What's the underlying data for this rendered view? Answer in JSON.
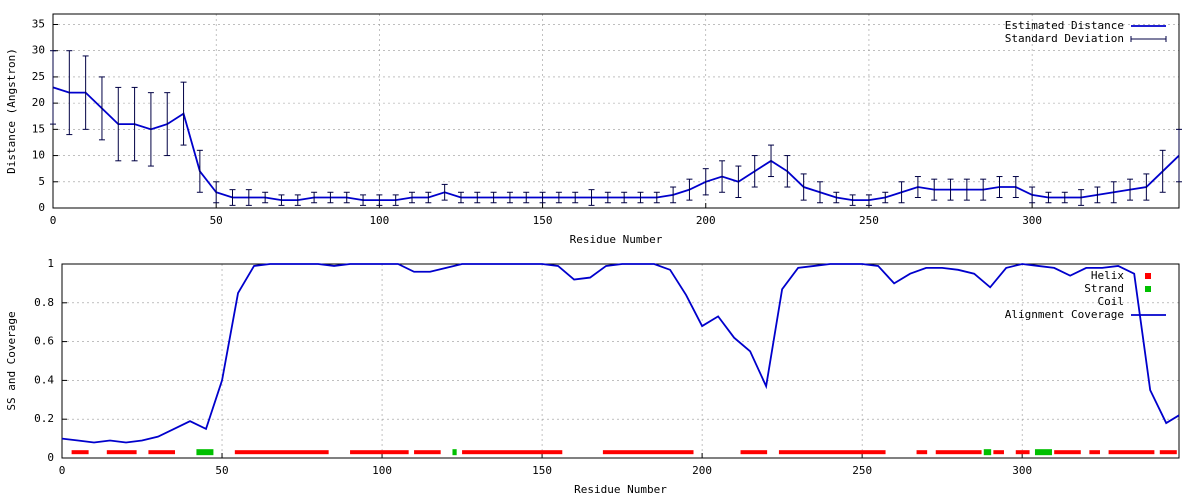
{
  "chart_data": [
    {
      "type": "line",
      "xlabel": "Residue Number",
      "ylabel": "Distance (Angstron)",
      "xlim": [
        0,
        345
      ],
      "xticks": [
        0,
        50,
        100,
        150,
        200,
        250,
        300
      ],
      "ylim": [
        0,
        37
      ],
      "yticks": [
        0,
        5,
        10,
        15,
        20,
        25,
        30,
        35
      ],
      "grid": true,
      "legend": "top-right",
      "x": [
        0,
        5,
        10,
        15,
        20,
        25,
        30,
        35,
        40,
        45,
        50,
        55,
        60,
        65,
        70,
        75,
        80,
        85,
        90,
        95,
        100,
        105,
        110,
        115,
        120,
        125,
        130,
        135,
        140,
        145,
        150,
        155,
        160,
        165,
        170,
        175,
        180,
        185,
        190,
        195,
        200,
        205,
        210,
        215,
        220,
        225,
        230,
        235,
        240,
        245,
        250,
        255,
        260,
        265,
        270,
        275,
        280,
        285,
        290,
        295,
        300,
        305,
        310,
        315,
        320,
        325,
        330,
        335,
        340,
        345
      ],
      "series": [
        {
          "name": "Estimated Distance",
          "color": "#0000cc",
          "values": [
            23,
            22,
            22,
            19,
            16,
            16,
            15,
            16,
            18,
            7,
            3,
            2,
            2,
            2,
            1.5,
            1.5,
            2,
            2,
            2,
            1.5,
            1.5,
            1.5,
            2,
            2,
            3,
            2,
            2,
            2,
            2,
            2,
            2,
            2,
            2,
            2,
            2,
            2,
            2,
            2,
            2.5,
            3.5,
            5,
            6,
            5,
            7,
            9,
            7,
            4,
            3,
            2,
            1.5,
            1.5,
            2,
            3,
            4,
            3.5,
            3.5,
            3.5,
            3.5,
            4,
            4,
            2.5,
            2,
            2,
            2,
            2.5,
            3,
            3.5,
            4,
            7,
            10
          ]
        },
        {
          "name": "Standard Deviation",
          "color": "#000044",
          "errors": [
            7,
            8,
            7,
            6,
            7,
            7,
            7,
            6,
            6,
            4,
            2,
            1.5,
            1.5,
            1,
            1,
            1,
            1,
            1,
            1,
            1,
            1,
            1,
            1,
            1,
            1.5,
            1,
            1,
            1,
            1,
            1,
            1,
            1,
            1,
            1.5,
            1,
            1,
            1,
            1,
            1.5,
            2,
            2.5,
            3,
            3,
            3,
            3,
            3,
            2.5,
            2,
            1,
            1,
            1,
            1,
            2,
            2,
            2,
            2,
            2,
            2,
            2,
            2,
            1.5,
            1,
            1,
            1.5,
            1.5,
            2,
            2,
            2.5,
            4,
            5
          ]
        }
      ]
    },
    {
      "type": "line",
      "xlabel": "Residue Number",
      "ylabel": "SS and Coverage",
      "xlim": [
        0,
        349
      ],
      "xticks": [
        0,
        50,
        100,
        150,
        200,
        250,
        300
      ],
      "ylim": [
        0,
        1
      ],
      "yticks": [
        0,
        0.2,
        0.4,
        0.6,
        0.8,
        1
      ],
      "grid": true,
      "legend": "top-right",
      "x": [
        0,
        5,
        10,
        15,
        20,
        25,
        30,
        35,
        40,
        45,
        50,
        55,
        60,
        65,
        70,
        75,
        80,
        85,
        90,
        95,
        100,
        105,
        110,
        115,
        120,
        125,
        130,
        135,
        140,
        145,
        150,
        155,
        160,
        165,
        170,
        175,
        180,
        185,
        190,
        195,
        200,
        205,
        210,
        215,
        220,
        225,
        230,
        235,
        240,
        245,
        250,
        255,
        260,
        265,
        270,
        275,
        280,
        285,
        290,
        295,
        300,
        305,
        310,
        315,
        320,
        325,
        330,
        335,
        340,
        345,
        349
      ],
      "series": [
        {
          "name": "Helix",
          "color": "#ff0000",
          "y": 0.03,
          "ranges": [
            [
              3,
              8
            ],
            [
              14,
              23
            ],
            [
              27,
              35
            ],
            [
              54,
              83
            ],
            [
              90,
              108
            ],
            [
              110,
              118
            ],
            [
              125,
              156
            ],
            [
              169,
              197
            ],
            [
              212,
              220
            ],
            [
              224,
              257
            ],
            [
              267,
              270
            ],
            [
              273,
              287
            ],
            [
              291,
              294
            ],
            [
              298,
              302
            ],
            [
              310,
              318
            ],
            [
              321,
              324
            ],
            [
              327,
              341
            ],
            [
              343,
              348
            ]
          ]
        },
        {
          "name": "Strand",
          "color": "#00c000",
          "y": 0.03,
          "ranges": [
            [
              42,
              47
            ],
            [
              122,
              123
            ],
            [
              288,
              290
            ],
            [
              304,
              309
            ]
          ]
        },
        {
          "name": "Coil",
          "color": "#00a0a0"
        },
        {
          "name": "Alignment Coverage",
          "color": "#0000cc",
          "values": [
            0.1,
            0.09,
            0.08,
            0.09,
            0.08,
            0.09,
            0.11,
            0.15,
            0.19,
            0.15,
            0.4,
            0.85,
            0.99,
            1,
            1,
            1,
            1,
            0.99,
            1,
            1,
            1,
            1,
            0.96,
            0.96,
            0.98,
            1,
            1,
            1,
            1,
            1,
            1,
            0.99,
            0.92,
            0.93,
            0.99,
            1,
            1,
            1,
            0.97,
            0.84,
            0.68,
            0.73,
            0.62,
            0.55,
            0.37,
            0.87,
            0.98,
            0.99,
            1,
            1,
            1,
            0.99,
            0.9,
            0.95,
            0.98,
            0.98,
            0.97,
            0.95,
            0.88,
            0.98,
            1,
            0.99,
            0.98,
            0.94,
            0.98,
            0.98,
            0.99,
            0.95,
            0.35,
            0.18,
            0.22
          ]
        }
      ]
    }
  ]
}
